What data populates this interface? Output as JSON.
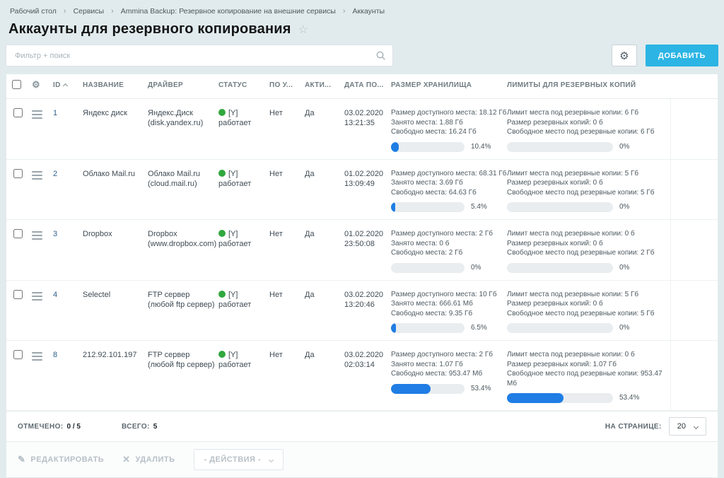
{
  "colors": {
    "accent": "#2bb4e4",
    "progress": "#1f7de4",
    "status_ok": "#31a83e",
    "link": "#2d5f8a"
  },
  "breadcrumb": {
    "items": [
      "Рабочий стол",
      "Сервисы",
      "Ammina Backup: Резервное копирование на внешние сервисы",
      "Аккаунты"
    ]
  },
  "page": {
    "title": "Аккаунты для резервного копирования"
  },
  "filter": {
    "placeholder": "Фильтр + поиск"
  },
  "toolbar": {
    "add_label": "ДОБАВИТЬ"
  },
  "grid": {
    "columns": {
      "id": "ID",
      "name": "НАЗВАНИЕ",
      "driver": "ДРАЙВЕР",
      "status": "СТАТУС",
      "by_default": "ПО У...",
      "active": "АКТИ...",
      "date": "ДАТА ПО...",
      "storage": "РАЗМЕР ХРАНИЛИЩА",
      "limits": "ЛИМИТЫ ДЛЯ РЕЗЕРВНЫХ КОПИЙ"
    }
  },
  "accounts": [
    {
      "id": "1",
      "name": "Яндекс диск",
      "driver": [
        "Яндекс.Диск",
        "(disk.yandex.ru)"
      ],
      "status": {
        "code": "[Y]",
        "text": "работает"
      },
      "by_default": "Нет",
      "active": "Да",
      "date": [
        "03.02.2020",
        "13:21:35"
      ],
      "storage": {
        "lines": [
          "Размер доступного места: 18.12 Гб",
          "Занято места: 1.88 Гб",
          "Свободно места: 16.24 Гб"
        ],
        "percent": 10.4
      },
      "limits": {
        "lines": [
          "Лимит места под резервные копии: 6 Гб",
          "Размер резервных копий: 0 б",
          "Свободное место под резервные копии: 6 Гб"
        ],
        "percent": 0
      }
    },
    {
      "id": "2",
      "name": "Облако Mail.ru",
      "driver": [
        "Облако Mail.ru",
        "(cloud.mail.ru)"
      ],
      "status": {
        "code": "[Y]",
        "text": "работает"
      },
      "by_default": "Нет",
      "active": "Да",
      "date": [
        "01.02.2020",
        "13:09:49"
      ],
      "storage": {
        "lines": [
          "Размер доступного места: 68.31 Гб",
          "Занято места: 3.69 Гб",
          "Свободно места: 64.63 Гб"
        ],
        "percent": 5.4
      },
      "limits": {
        "lines": [
          "Лимит места под резервные копии: 5 Гб",
          "Размер резервных копий: 0 б",
          "Свободное место под резервные копии: 5 Гб"
        ],
        "percent": 0
      }
    },
    {
      "id": "3",
      "name": "Dropbox",
      "driver": [
        "Dropbox",
        "(www.dropbox.com)"
      ],
      "status": {
        "code": "[Y]",
        "text": "работает"
      },
      "by_default": "Нет",
      "active": "Да",
      "date": [
        "01.02.2020",
        "23:50:08"
      ],
      "storage": {
        "lines": [
          "Размер доступного места: 2 Гб",
          "Занято места: 0 б",
          "Свободно места: 2 Гб"
        ],
        "percent": 0
      },
      "limits": {
        "lines": [
          "Лимит места под резервные копии: 0 б",
          "Размер резервных копий: 0 б",
          "Свободное место под резервные копии: 2 Гб"
        ],
        "percent": 0
      }
    },
    {
      "id": "4",
      "name": "Selectel",
      "driver": [
        "FTP сервер",
        "(любой ftp сервер)"
      ],
      "status": {
        "code": "[Y]",
        "text": "работает"
      },
      "by_default": "Нет",
      "active": "Да",
      "date": [
        "03.02.2020",
        "13:20:46"
      ],
      "storage": {
        "lines": [
          "Размер доступного места: 10 Гб",
          "Занято места: 666.61 Мб",
          "Свободно места: 9.35 Гб"
        ],
        "percent": 6.5
      },
      "limits": {
        "lines": [
          "Лимит места под резервные копии: 5 Гб",
          "Размер резервных копий: 0 б",
          "Свободное место под резервные копии: 5 Гб"
        ],
        "percent": 0
      }
    },
    {
      "id": "8",
      "name": "212.92.101.197",
      "driver": [
        "FTP сервер",
        "(любой ftp сервер)"
      ],
      "status": {
        "code": "[Y]",
        "text": "работает"
      },
      "by_default": "Нет",
      "active": "Да",
      "date": [
        "03.02.2020",
        "02:03:14"
      ],
      "storage": {
        "lines": [
          "Размер доступного места: 2 Гб",
          "Занято места: 1.07 Гб",
          "Свободно места: 953.47 Мб"
        ],
        "percent": 53.4
      },
      "limits": {
        "lines": [
          "Лимит места под резервные копии: 0 б",
          "Размер резервных копий: 1.07 Гб",
          "Свободное место под резервные копии: 953.47 Мб"
        ],
        "percent": 53.4
      }
    }
  ],
  "footer": {
    "checked_label": "ОТМЕЧЕНО:",
    "checked_value": "0 / 5",
    "total_label": "ВСЕГО:",
    "total_value": "5",
    "per_page_label": "НА СТРАНИЦЕ:",
    "per_page_value": "20"
  },
  "actions": {
    "edit": "РЕДАКТИРОВАТЬ",
    "delete": "УДАЛИТЬ",
    "menu": "- ДЕЙСТВИЯ -"
  }
}
